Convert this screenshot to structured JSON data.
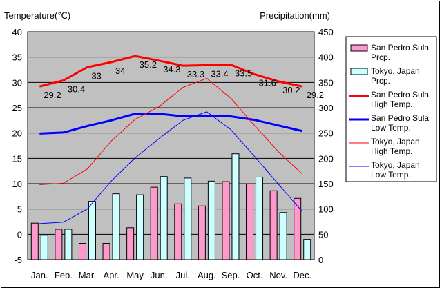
{
  "chart_data": {
    "type": "bar+line",
    "title": "",
    "y_left_label": "Temperature(℃)",
    "y_right_label": "Precipitation(mm)",
    "y_left_lim": [
      -5,
      40
    ],
    "y_left_ticks": [
      -5,
      0,
      5,
      10,
      15,
      20,
      25,
      30,
      35,
      40
    ],
    "y_right_lim": [
      0,
      450
    ],
    "y_right_ticks": [
      0,
      50,
      100,
      150,
      200,
      250,
      300,
      350,
      400,
      450
    ],
    "categories": [
      "Jan.",
      "Feb.",
      "Mar.",
      "Apr.",
      "May",
      "Jun.",
      "Jul.",
      "Aug.",
      "Sep.",
      "Oct.",
      "Nov.",
      "Dec."
    ],
    "grid": true,
    "legend_position": "right",
    "plot_background": "#c0c0c0",
    "series": [
      {
        "name": "San Pedro Sula Prcp.",
        "kind": "bar",
        "axis": "right",
        "color": "#ff99cc",
        "values": [
          72,
          60,
          32,
          32,
          63,
          143,
          110,
          106,
          154,
          150,
          136,
          121
        ]
      },
      {
        "name": "Tokyo, Japan Prcp.",
        "kind": "bar",
        "axis": "right",
        "color": "#ccffff",
        "values": [
          48,
          60,
          115,
          130,
          128,
          164,
          161,
          155,
          209,
          163,
          93,
          40
        ]
      },
      {
        "name": "San Pedro Sula High Temp.",
        "kind": "line",
        "axis": "left",
        "color": "#ff0000",
        "width": 3,
        "values": [
          29.2,
          30.4,
          33,
          34,
          35.2,
          34.3,
          33.3,
          33.4,
          33.5,
          31.6,
          30.2,
          29.2
        ],
        "labels": [
          "29.2",
          "30.4",
          "33",
          "34",
          "35.2",
          "34.3",
          "33.3",
          "33.4",
          "33.5",
          "31.6",
          "30.2",
          "29.2"
        ]
      },
      {
        "name": "San Pedro Sula Low Temp.",
        "kind": "line",
        "axis": "left",
        "color": "#0000ff",
        "width": 3,
        "values": [
          19.9,
          20.1,
          21.4,
          22.5,
          23.8,
          23.8,
          23.3,
          23.3,
          23.3,
          22.6,
          21.5,
          20.4
        ]
      },
      {
        "name": "Tokyo, Japan High Temp.",
        "kind": "line",
        "axis": "left",
        "color": "#ff0000",
        "width": 1,
        "values": [
          9.8,
          10.1,
          12.9,
          18.4,
          22.7,
          25.2,
          29,
          30.8,
          26.9,
          21.5,
          16.3,
          11.9
        ]
      },
      {
        "name": "Tokyo, Japan Low Temp.",
        "kind": "line",
        "axis": "left",
        "color": "#0000ff",
        "width": 1,
        "values": [
          2.1,
          2.4,
          5,
          10.5,
          15.1,
          18.9,
          22.5,
          24.2,
          20.7,
          15.4,
          9.9,
          4.5
        ]
      }
    ],
    "legend": [
      {
        "lines": [
          "San Pedro Sula",
          "Prcp."
        ],
        "swatch": "bar",
        "color": "#ff99cc"
      },
      {
        "lines": [
          "Tokyo, Japan",
          "Prcp."
        ],
        "swatch": "bar",
        "color": "#ccffff"
      },
      {
        "lines": [
          "San Pedro Sula",
          "High Temp."
        ],
        "swatch": "line",
        "color": "#ff0000",
        "width": 3
      },
      {
        "lines": [
          "San Pedro Sula",
          "Low Temp."
        ],
        "swatch": "line",
        "color": "#0000ff",
        "width": 3
      },
      {
        "lines": [
          "Tokyo, Japan",
          "High Temp."
        ],
        "swatch": "line",
        "color": "#ff0000",
        "width": 1
      },
      {
        "lines": [
          "Tokyo, Japan",
          "Low Temp."
        ],
        "swatch": "line",
        "color": "#0000ff",
        "width": 1
      }
    ]
  }
}
